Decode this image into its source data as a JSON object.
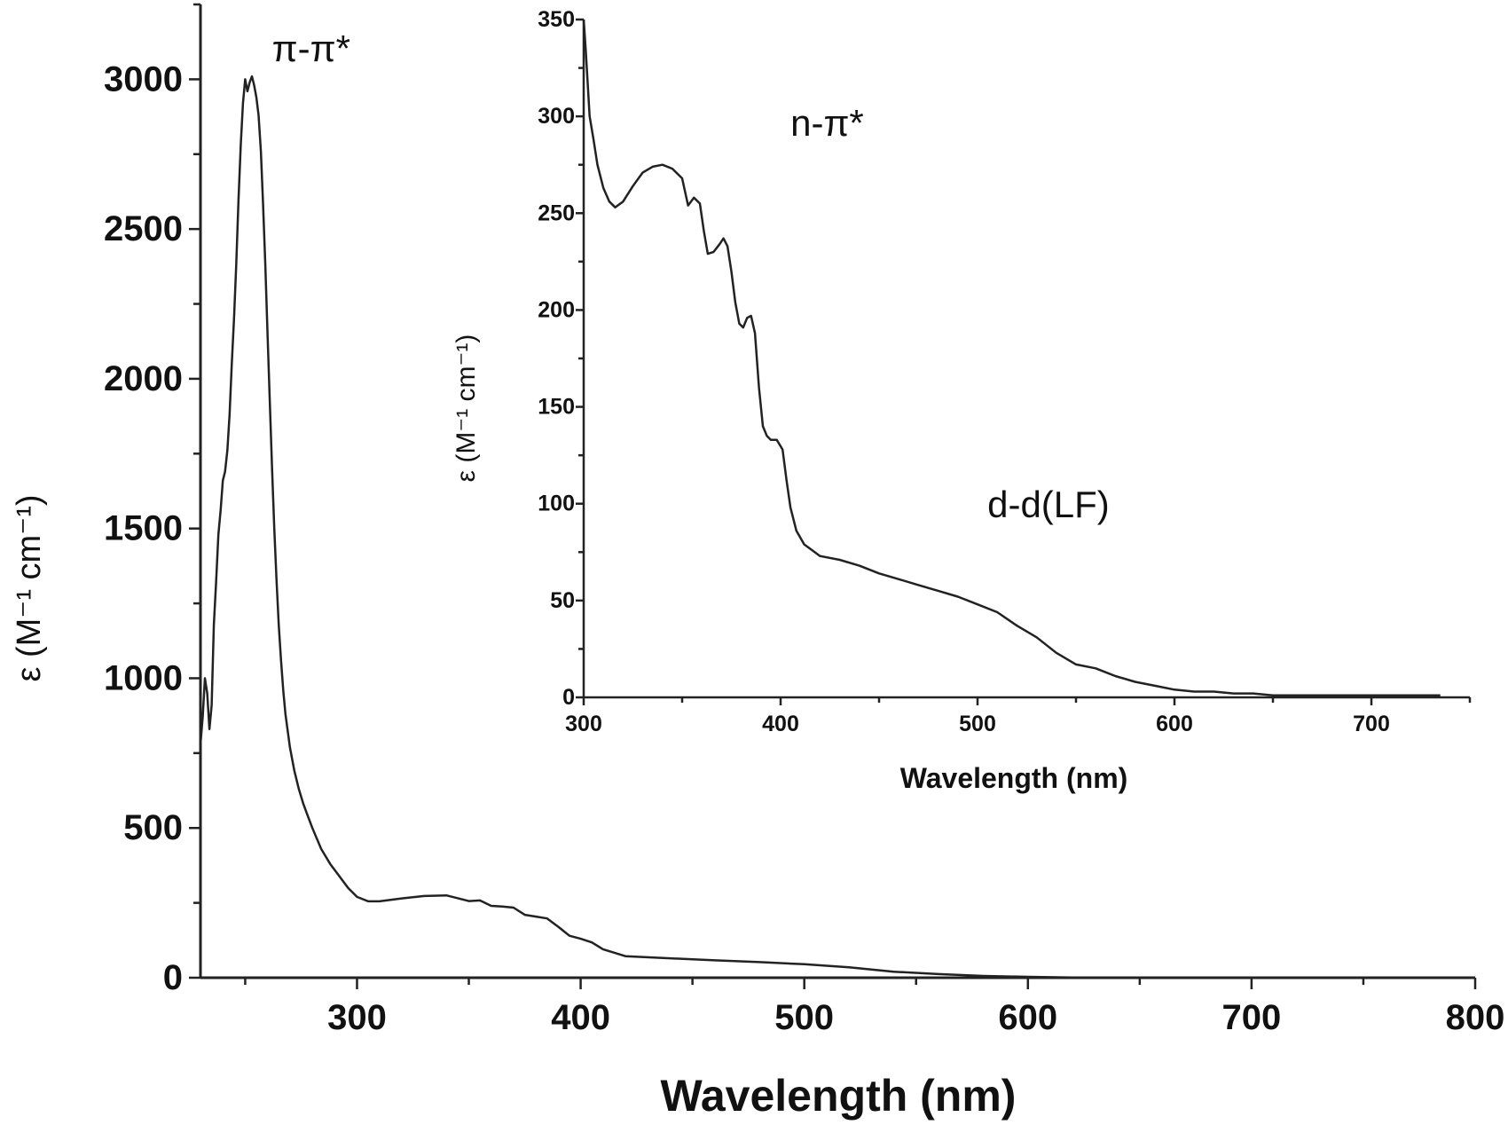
{
  "chart_data": [
    {
      "type": "line",
      "role": "main",
      "xlabel": "Wavelength (nm)",
      "ylabel": "ε (M⁻¹ cm⁻¹)",
      "xlim": [
        230,
        800
      ],
      "ylim": [
        0,
        3200
      ],
      "xticks": [
        300,
        400,
        500,
        600,
        700,
        800
      ],
      "yticks": [
        0,
        500,
        1000,
        1500,
        2000,
        2500,
        3000
      ],
      "x_tick_labels": [
        "300",
        "400",
        "500",
        "600",
        "700",
        "800"
      ],
      "y_tick_labels": [
        "0",
        "500",
        "1000",
        "1500",
        "2000",
        "2500",
        "3000"
      ],
      "annotations": [
        {
          "text": "π-π*",
          "x": 262,
          "y": 3060
        }
      ],
      "series": [
        {
          "x": [
            230,
            231,
            232,
            233,
            234,
            235,
            236,
            237,
            238,
            239,
            240,
            241,
            242,
            243,
            244,
            245,
            246,
            247,
            248,
            249,
            250,
            251,
            252,
            253,
            254,
            255,
            256,
            257,
            258,
            259,
            260,
            261,
            262,
            263,
            264,
            265,
            266,
            267,
            268,
            270,
            272,
            274,
            276,
            278,
            280,
            284,
            288,
            292,
            296,
            300,
            305,
            310,
            315,
            320,
            330,
            340,
            350,
            355,
            360,
            365,
            370,
            375,
            380,
            385,
            390,
            395,
            400,
            405,
            410,
            420,
            440,
            460,
            480,
            500,
            520,
            540,
            560,
            580,
            600,
            620,
            640,
            660,
            680,
            700
          ],
          "y": [
            780,
            870,
            1000,
            950,
            830,
            910,
            1180,
            1320,
            1480,
            1560,
            1660,
            1690,
            1760,
            1880,
            2050,
            2200,
            2380,
            2600,
            2780,
            2920,
            3000,
            2960,
            2990,
            3010,
            2980,
            2940,
            2880,
            2760,
            2580,
            2380,
            2150,
            1920,
            1700,
            1500,
            1330,
            1180,
            1060,
            960,
            880,
            770,
            690,
            630,
            580,
            540,
            500,
            430,
            380,
            340,
            300,
            270,
            255,
            255,
            260,
            265,
            273,
            275,
            256,
            258,
            240,
            238,
            234,
            210,
            204,
            198,
            170,
            140,
            130,
            118,
            95,
            72,
            65,
            58,
            52,
            45,
            35,
            20,
            12,
            6,
            3,
            1,
            0,
            0,
            0,
            0
          ]
        }
      ]
    },
    {
      "type": "line",
      "role": "inset",
      "xlabel": "Wavelength (nm)",
      "ylabel": "ε (M⁻¹ cm⁻¹)",
      "xlim": [
        300,
        750
      ],
      "ylim": [
        0,
        350
      ],
      "xticks": [
        300,
        400,
        500,
        600,
        700
      ],
      "yticks": [
        0,
        50,
        100,
        150,
        200,
        250,
        300,
        350
      ],
      "x_tick_labels": [
        "300",
        "400",
        "500",
        "600",
        "700"
      ],
      "y_tick_labels": [
        "0",
        "50",
        "100",
        "150",
        "200",
        "250",
        "300",
        "350"
      ],
      "annotations": [
        {
          "text": "n-π*",
          "x": 405,
          "y": 290
        },
        {
          "text": "d-d(LF)",
          "x": 505,
          "y": 93
        }
      ],
      "series": [
        {
          "x": [
            300,
            301,
            302,
            303,
            305,
            307,
            310,
            313,
            316,
            320,
            325,
            330,
            335,
            340,
            345,
            350,
            353,
            356,
            359,
            361,
            363,
            366,
            369,
            371,
            373,
            375,
            377,
            379,
            381,
            383,
            385,
            387,
            389,
            391,
            393,
            395,
            398,
            401,
            403,
            405,
            408,
            412,
            416,
            420,
            430,
            440,
            450,
            460,
            470,
            480,
            490,
            500,
            510,
            520,
            530,
            540,
            550,
            560,
            570,
            580,
            590,
            600,
            610,
            620,
            630,
            640,
            650,
            660,
            670,
            680,
            690,
            700,
            710,
            720,
            735
          ],
          "y": [
            350,
            335,
            318,
            300,
            288,
            275,
            263,
            256,
            253,
            256,
            264,
            271,
            274,
            275,
            273,
            268,
            254,
            258,
            255,
            241,
            229,
            230,
            234,
            237,
            233,
            220,
            204,
            193,
            191,
            196,
            197,
            188,
            160,
            140,
            135,
            133,
            133,
            128,
            112,
            98,
            86,
            79,
            76,
            73,
            71,
            68,
            64,
            61,
            58,
            55,
            52,
            48,
            44,
            37,
            31,
            23,
            17,
            15,
            11,
            8,
            6,
            4,
            3,
            3,
            2,
            2,
            1,
            1,
            1,
            1,
            1,
            1,
            1,
            1,
            1
          ]
        }
      ]
    }
  ]
}
